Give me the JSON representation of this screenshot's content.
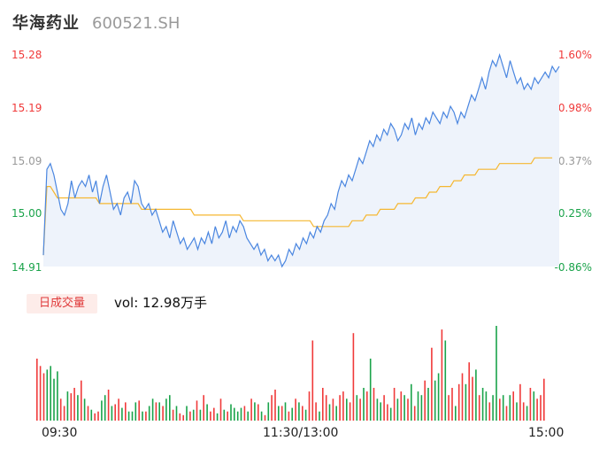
{
  "header": {
    "name": "华海药业",
    "code": "600521.SH"
  },
  "price_axis": {
    "left_ticks": [
      "15.28",
      "15.19",
      "15.09",
      "15.00",
      "14.91"
    ],
    "right_ticks": [
      "1.60%",
      "0.98%",
      "0.37%",
      "-0.25%",
      "-0.86%"
    ],
    "colors": {
      "up": "#f03a3a",
      "ref": "#999999",
      "down": "#1aa34a"
    }
  },
  "volume": {
    "badge": "日成交量",
    "label": "vol: 12.98万手"
  },
  "time_axis": {
    "ticks": [
      "09:30",
      "11:30/13:00",
      "15:00"
    ]
  },
  "chart_data": {
    "type": "line",
    "x_ticks": [
      "09:30",
      "11:30/13:00",
      "15:00"
    ],
    "ylim": [
      14.91,
      15.28
    ],
    "pct_range": [
      -0.86,
      1.6
    ],
    "series": [
      {
        "values": [
          14.93,
          15.08,
          15.09,
          15.07,
          15.04,
          15.01,
          15.0,
          15.02,
          15.06,
          15.03,
          15.05,
          15.06,
          15.05,
          15.07,
          15.04,
          15.06,
          15.02,
          15.05,
          15.07,
          15.04,
          15.01,
          15.02,
          15.0,
          15.03,
          15.04,
          15.02,
          15.06,
          15.05,
          15.02,
          15.01,
          15.02,
          15.0,
          15.01,
          14.99,
          14.97,
          14.98,
          14.96,
          14.99,
          14.97,
          14.95,
          14.96,
          14.94,
          14.95,
          14.96,
          14.94,
          14.96,
          14.95,
          14.97,
          14.95,
          14.98,
          14.96,
          14.97,
          14.99,
          14.96,
          14.98,
          14.97,
          14.99,
          14.98,
          14.96,
          14.95,
          14.94,
          14.95,
          14.93,
          14.94,
          14.92,
          14.93,
          14.92,
          14.93,
          14.91,
          14.92,
          14.94,
          14.93,
          14.95,
          14.94,
          14.96,
          14.95,
          14.97,
          14.96,
          14.98,
          14.97,
          14.99,
          15.0,
          15.02,
          15.01,
          15.04,
          15.06,
          15.05,
          15.07,
          15.06,
          15.08,
          15.1,
          15.09,
          15.11,
          15.13,
          15.12,
          15.14,
          15.13,
          15.15,
          15.14,
          15.16,
          15.15,
          15.13,
          15.14,
          15.16,
          15.15,
          15.17,
          15.14,
          15.16,
          15.15,
          15.17,
          15.16,
          15.18,
          15.17,
          15.16,
          15.18,
          15.17,
          15.19,
          15.18,
          15.16,
          15.18,
          15.17,
          15.19,
          15.21,
          15.2,
          15.22,
          15.24,
          15.22,
          15.25,
          15.27,
          15.26,
          15.28,
          15.26,
          15.24,
          15.27,
          15.25,
          15.23,
          15.24,
          15.22,
          15.23,
          15.22,
          15.24,
          15.23,
          15.24,
          15.25,
          15.24,
          15.26,
          15.25,
          15.26
        ]
      },
      {
        "values": [
          14.93,
          15.05,
          15.05,
          15.04,
          15.03,
          15.03,
          15.03,
          15.03,
          15.03,
          15.03,
          15.03,
          15.03,
          15.03,
          15.03,
          15.03,
          15.03,
          15.02,
          15.02,
          15.02,
          15.02,
          15.02,
          15.02,
          15.02,
          15.02,
          15.02,
          15.02,
          15.02,
          15.02,
          15.01,
          15.01,
          15.01,
          15.01,
          15.01,
          15.01,
          15.01,
          15.01,
          15.01,
          15.01,
          15.01,
          15.01,
          15.01,
          15.01,
          15.01,
          15.0,
          15.0,
          15.0,
          15.0,
          15.0,
          15.0,
          15.0,
          15.0,
          15.0,
          15.0,
          15.0,
          15.0,
          15.0,
          15.0,
          14.99,
          14.99,
          14.99,
          14.99,
          14.99,
          14.99,
          14.99,
          14.99,
          14.99,
          14.99,
          14.99,
          14.99,
          14.99,
          14.99,
          14.99,
          14.99,
          14.99,
          14.99,
          14.99,
          14.99,
          14.98,
          14.98,
          14.98,
          14.98,
          14.98,
          14.98,
          14.98,
          14.98,
          14.98,
          14.98,
          14.98,
          14.99,
          14.99,
          14.99,
          14.99,
          15.0,
          15.0,
          15.0,
          15.0,
          15.01,
          15.01,
          15.01,
          15.01,
          15.01,
          15.02,
          15.02,
          15.02,
          15.02,
          15.02,
          15.03,
          15.03,
          15.03,
          15.03,
          15.04,
          15.04,
          15.04,
          15.05,
          15.05,
          15.05,
          15.05,
          15.06,
          15.06,
          15.06,
          15.07,
          15.07,
          15.07,
          15.07,
          15.08,
          15.08,
          15.08,
          15.08,
          15.08,
          15.08,
          15.09,
          15.09,
          15.09,
          15.09,
          15.09,
          15.09,
          15.09,
          15.09,
          15.09,
          15.09,
          15.1,
          15.1,
          15.1,
          15.1,
          15.1,
          15.1
        ]
      }
    ],
    "volume": [
      34,
      30,
      26,
      28,
      30,
      23,
      27,
      12,
      8,
      16,
      15,
      18,
      14,
      22,
      12,
      8,
      6,
      4,
      5,
      11,
      14,
      17,
      8,
      9,
      12,
      7,
      10,
      5,
      5,
      10,
      11,
      5,
      5,
      8,
      12,
      10,
      10,
      8,
      12,
      14,
      6,
      8,
      4,
      3,
      8,
      5,
      6,
      11,
      6,
      14,
      9,
      5,
      7,
      4,
      12,
      6,
      5,
      9,
      7,
      5,
      7,
      8,
      5,
      12,
      10,
      9,
      5,
      3,
      10,
      14,
      17,
      8,
      8,
      10,
      5,
      7,
      12,
      10,
      8,
      6,
      16,
      44,
      10,
      5,
      18,
      14,
      9,
      12,
      8,
      14,
      16,
      12,
      10,
      48,
      14,
      12,
      18,
      16,
      34,
      18,
      12,
      10,
      14,
      9,
      7,
      18,
      12,
      16,
      14,
      12,
      20,
      8,
      16,
      14,
      22,
      18,
      40,
      22,
      26,
      50,
      44,
      14,
      18,
      8,
      20,
      26,
      20,
      32,
      24,
      28,
      14,
      18,
      16,
      10,
      14,
      52,
      12,
      14,
      8,
      14,
      16,
      10,
      20,
      10,
      8,
      18,
      16,
      12,
      14,
      23
    ],
    "volume_unit": "万手"
  }
}
